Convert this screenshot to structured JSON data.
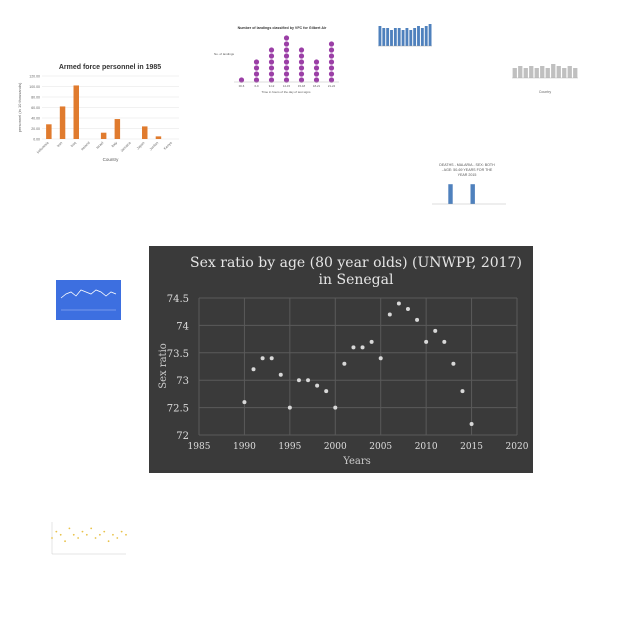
{
  "chart_data": [
    {
      "type": "scatter",
      "title": "Sex ratio by age (80 year olds) (UNWPP, 2017)",
      "subtitle": "in Senegal",
      "xlabel": "Years",
      "ylabel": "Sex ratio",
      "xlim": [
        1985,
        2020
      ],
      "ylim": [
        72,
        74.5
      ],
      "x_ticks": [
        "1985",
        "1990",
        "1995",
        "2000",
        "2005",
        "2010",
        "2015",
        "2020"
      ],
      "y_ticks": [
        "72",
        "72.5",
        "73",
        "73.5",
        "74",
        "74.5"
      ],
      "grid": true,
      "colors": {
        "background": "#3a3a3a",
        "marker": "#d8d8d8",
        "grid": "#5a5a5a",
        "text": "#dddddd"
      },
      "series": [
        {
          "x": [
            1990,
            1991,
            1992,
            1993,
            1994,
            1995,
            1996,
            1997,
            1998,
            1999,
            2000,
            2001,
            2002,
            2003,
            2004,
            2005,
            2006,
            2007,
            2008,
            2009,
            2010,
            2011,
            2012,
            2013,
            2014,
            2015
          ],
          "y": [
            72.6,
            73.2,
            73.4,
            73.4,
            73.1,
            72.5,
            73.0,
            73.0,
            72.9,
            72.8,
            72.5,
            73.3,
            73.6,
            73.6,
            73.7,
            73.4,
            74.2,
            74.4,
            74.3,
            74.1,
            73.7,
            73.9,
            73.7,
            73.3,
            72.8,
            72.2
          ]
        }
      ]
    },
    {
      "type": "bar",
      "title": "Armed force personnel in 1985",
      "xlabel": "Country",
      "ylabel": "personnel (in 10 thousands)",
      "ylim": [
        0,
        120
      ],
      "y_ticks": [
        "0.00",
        "20.00",
        "40.00",
        "60.00",
        "80.00",
        "100.00",
        "120.00"
      ],
      "categories": [
        "Indonesia",
        "Iran",
        "Iraq",
        "Ireland",
        "Israel",
        "Italy",
        "Jamaica",
        "Japan",
        "Jordan",
        "Kenya"
      ],
      "values": [
        28,
        62,
        102,
        0,
        12,
        38,
        0,
        24,
        5,
        0
      ],
      "colors": {
        "bar": "#e07b2e"
      }
    },
    {
      "type": "scatter",
      "title": "Number of landings classified by VFC for Gilbert Air",
      "ylabel": "No. of landings",
      "xlabel": "Time in hours of the day of test signs",
      "categories": [
        "00-6",
        "6-9",
        "9-12",
        "12-15",
        "15-18",
        "18-21",
        "21-24"
      ],
      "values": [
        1,
        4,
        6,
        8,
        6,
        4,
        7
      ],
      "colors": {
        "marker": "#9b3fa6"
      }
    },
    {
      "type": "bar",
      "values": [
        10,
        9,
        9,
        8,
        9,
        9,
        8,
        9,
        8,
        9,
        10,
        9,
        10,
        11
      ],
      "colors": {
        "bar": "#4f81bd"
      }
    },
    {
      "type": "bar",
      "values": [
        5,
        6,
        5,
        6,
        5,
        6,
        5,
        7,
        6,
        5,
        6,
        5
      ],
      "xlabel": "Country",
      "colors": {
        "bar": "#c0c0c0"
      }
    },
    {
      "type": "bar",
      "title": "DEATHS - MALARIA - SEX: BOTH - AGE: 50-69 YEARS FOR THE YEAR 2015",
      "values": [
        0,
        0,
        9,
        0,
        0,
        9,
        0,
        0,
        0,
        0
      ],
      "colors": {
        "bar": "#4f81bd"
      }
    },
    {
      "type": "line",
      "values": [
        6,
        8,
        9,
        7,
        10,
        9,
        8,
        10,
        9,
        7,
        9,
        8
      ],
      "colors": {
        "background": "#3d6fe0",
        "line": "#ffffff"
      }
    },
    {
      "type": "scatter",
      "values": [
        5,
        7,
        6,
        4,
        8,
        6,
        5,
        7,
        6,
        8,
        5,
        6,
        7,
        4,
        6,
        5,
        7,
        6
      ],
      "colors": {
        "marker": "#e8c24a"
      }
    }
  ]
}
